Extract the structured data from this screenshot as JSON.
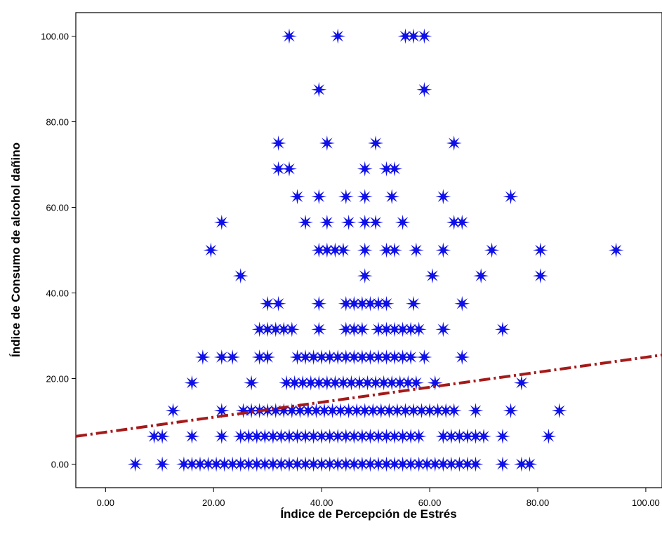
{
  "chart_data": {
    "type": "scatter",
    "xlabel": "Índice de Percepción de Estrés",
    "ylabel": "Índice de Consumo de alcohol dañino",
    "xlim": [
      -5.5,
      103
    ],
    "ylim": [
      -5.5,
      105.5
    ],
    "x_ticks": [
      0,
      20,
      40,
      60,
      80,
      100
    ],
    "y_ticks": [
      0,
      20,
      40,
      60,
      80,
      100
    ],
    "x_tick_labels": [
      "0.00",
      "20.00",
      "40.00",
      "60.00",
      "80.00",
      "100.00"
    ],
    "y_tick_labels": [
      "0.00",
      "20.00",
      "40.00",
      "60.00",
      "80.00",
      "100.00"
    ],
    "grid": false,
    "marker": "star",
    "marker_color": "#0f0fe8",
    "fit_line": {
      "style": "dash-dot",
      "color": "#a51a1a",
      "x": [
        -5.5,
        103
      ],
      "y": [
        6.5,
        25.5
      ]
    },
    "points": [
      [
        34,
        100
      ],
      [
        43,
        100
      ],
      [
        55.5,
        100
      ],
      [
        57,
        100
      ],
      [
        59,
        100
      ],
      [
        39.5,
        87.5
      ],
      [
        59,
        87.5
      ],
      [
        32,
        75
      ],
      [
        41,
        75
      ],
      [
        50,
        75
      ],
      [
        64.5,
        75
      ],
      [
        32,
        69
      ],
      [
        34,
        69
      ],
      [
        48,
        69
      ],
      [
        52,
        69
      ],
      [
        53.5,
        69
      ],
      [
        35.5,
        62.5
      ],
      [
        39.5,
        62.5
      ],
      [
        44.5,
        62.5
      ],
      [
        48,
        62.5
      ],
      [
        53,
        62.5
      ],
      [
        62.5,
        62.5
      ],
      [
        75,
        62.5
      ],
      [
        21.5,
        56.5
      ],
      [
        37,
        56.5
      ],
      [
        41,
        56.5
      ],
      [
        45,
        56.5
      ],
      [
        48,
        56.5
      ],
      [
        50,
        56.5
      ],
      [
        55,
        56.5
      ],
      [
        64.5,
        56.5
      ],
      [
        66,
        56.5
      ],
      [
        19.5,
        50
      ],
      [
        39.5,
        50
      ],
      [
        41,
        50
      ],
      [
        42.5,
        50
      ],
      [
        44,
        50
      ],
      [
        48,
        50
      ],
      [
        52,
        50
      ],
      [
        53.5,
        50
      ],
      [
        57.5,
        50
      ],
      [
        62.5,
        50
      ],
      [
        71.5,
        50
      ],
      [
        80.5,
        50
      ],
      [
        94.5,
        50
      ],
      [
        25,
        44
      ],
      [
        48,
        44
      ],
      [
        60.5,
        44
      ],
      [
        69.5,
        44
      ],
      [
        80.5,
        44
      ],
      [
        30,
        37.5
      ],
      [
        32,
        37.5
      ],
      [
        39.5,
        37.5
      ],
      [
        44.5,
        37.5
      ],
      [
        46,
        37.5
      ],
      [
        47.5,
        37.5
      ],
      [
        49,
        37.5
      ],
      [
        50.5,
        37.5
      ],
      [
        52,
        37.5
      ],
      [
        57,
        37.5
      ],
      [
        66,
        37.5
      ],
      [
        28.5,
        31.5
      ],
      [
        30,
        31.5
      ],
      [
        31.5,
        31.5
      ],
      [
        33,
        31.5
      ],
      [
        34.5,
        31.5
      ],
      [
        39.5,
        31.5
      ],
      [
        44.5,
        31.5
      ],
      [
        46,
        31.5
      ],
      [
        47.5,
        31.5
      ],
      [
        50.5,
        31.5
      ],
      [
        52,
        31.5
      ],
      [
        53.5,
        31.5
      ],
      [
        55,
        31.5
      ],
      [
        56.5,
        31.5
      ],
      [
        58,
        31.5
      ],
      [
        62.5,
        31.5
      ],
      [
        73.5,
        31.5
      ],
      [
        18,
        25
      ],
      [
        21.5,
        25
      ],
      [
        23.5,
        25
      ],
      [
        28.5,
        25
      ],
      [
        30,
        25
      ],
      [
        35.5,
        25
      ],
      [
        37,
        25
      ],
      [
        38.5,
        25
      ],
      [
        40,
        25
      ],
      [
        41.5,
        25
      ],
      [
        43,
        25
      ],
      [
        44.5,
        25
      ],
      [
        46,
        25
      ],
      [
        47.5,
        25
      ],
      [
        49,
        25
      ],
      [
        50.5,
        25
      ],
      [
        52,
        25
      ],
      [
        53.5,
        25
      ],
      [
        55,
        25
      ],
      [
        56.5,
        25
      ],
      [
        59,
        25
      ],
      [
        66,
        25
      ],
      [
        16,
        19
      ],
      [
        27,
        19
      ],
      [
        33.5,
        19
      ],
      [
        35,
        19
      ],
      [
        36.5,
        19
      ],
      [
        38,
        19
      ],
      [
        39.5,
        19
      ],
      [
        41,
        19
      ],
      [
        42.5,
        19
      ],
      [
        44,
        19
      ],
      [
        45.5,
        19
      ],
      [
        47,
        19
      ],
      [
        48.5,
        19
      ],
      [
        50,
        19
      ],
      [
        51.5,
        19
      ],
      [
        53,
        19
      ],
      [
        54.5,
        19
      ],
      [
        56,
        19
      ],
      [
        57.5,
        19
      ],
      [
        61,
        19
      ],
      [
        77,
        19
      ],
      [
        12.5,
        12.5
      ],
      [
        21.5,
        12.5
      ],
      [
        25.5,
        12.5
      ],
      [
        27,
        12.5
      ],
      [
        28.5,
        12.5
      ],
      [
        30,
        12.5
      ],
      [
        31.5,
        12.5
      ],
      [
        33,
        12.5
      ],
      [
        34.5,
        12.5
      ],
      [
        36,
        12.5
      ],
      [
        37.5,
        12.5
      ],
      [
        39,
        12.5
      ],
      [
        40.5,
        12.5
      ],
      [
        42,
        12.5
      ],
      [
        43.5,
        12.5
      ],
      [
        45,
        12.5
      ],
      [
        46.5,
        12.5
      ],
      [
        48,
        12.5
      ],
      [
        49.5,
        12.5
      ],
      [
        51,
        12.5
      ],
      [
        52.5,
        12.5
      ],
      [
        54,
        12.5
      ],
      [
        55.5,
        12.5
      ],
      [
        57,
        12.5
      ],
      [
        58.5,
        12.5
      ],
      [
        60,
        12.5
      ],
      [
        61.5,
        12.5
      ],
      [
        63,
        12.5
      ],
      [
        64.5,
        12.5
      ],
      [
        68.5,
        12.5
      ],
      [
        75,
        12.5
      ],
      [
        84,
        12.5
      ],
      [
        9,
        6.5
      ],
      [
        10.5,
        6.5
      ],
      [
        16,
        6.5
      ],
      [
        21.5,
        6.5
      ],
      [
        25,
        6.5
      ],
      [
        26.5,
        6.5
      ],
      [
        28,
        6.5
      ],
      [
        29.5,
        6.5
      ],
      [
        31,
        6.5
      ],
      [
        32.5,
        6.5
      ],
      [
        34,
        6.5
      ],
      [
        35.5,
        6.5
      ],
      [
        37,
        6.5
      ],
      [
        38.5,
        6.5
      ],
      [
        40,
        6.5
      ],
      [
        41.5,
        6.5
      ],
      [
        43,
        6.5
      ],
      [
        44.5,
        6.5
      ],
      [
        46,
        6.5
      ],
      [
        47.5,
        6.5
      ],
      [
        49,
        6.5
      ],
      [
        50.5,
        6.5
      ],
      [
        52,
        6.5
      ],
      [
        53.5,
        6.5
      ],
      [
        55,
        6.5
      ],
      [
        56.5,
        6.5
      ],
      [
        58,
        6.5
      ],
      [
        62.5,
        6.5
      ],
      [
        64,
        6.5
      ],
      [
        65.5,
        6.5
      ],
      [
        67,
        6.5
      ],
      [
        68.5,
        6.5
      ],
      [
        70,
        6.5
      ],
      [
        73.5,
        6.5
      ],
      [
        82,
        6.5
      ],
      [
        5.5,
        0
      ],
      [
        10.5,
        0
      ],
      [
        14.5,
        0
      ],
      [
        16,
        0
      ],
      [
        17.5,
        0
      ],
      [
        19,
        0
      ],
      [
        20.5,
        0
      ],
      [
        22,
        0
      ],
      [
        23.5,
        0
      ],
      [
        25,
        0
      ],
      [
        26.5,
        0
      ],
      [
        28,
        0
      ],
      [
        29.5,
        0
      ],
      [
        31,
        0
      ],
      [
        32.5,
        0
      ],
      [
        34,
        0
      ],
      [
        35.5,
        0
      ],
      [
        37,
        0
      ],
      [
        38.5,
        0
      ],
      [
        40,
        0
      ],
      [
        41.5,
        0
      ],
      [
        43,
        0
      ],
      [
        44.5,
        0
      ],
      [
        46,
        0
      ],
      [
        47.5,
        0
      ],
      [
        49,
        0
      ],
      [
        50.5,
        0
      ],
      [
        52,
        0
      ],
      [
        53.5,
        0
      ],
      [
        55,
        0
      ],
      [
        56.5,
        0
      ],
      [
        58,
        0
      ],
      [
        59.5,
        0
      ],
      [
        61,
        0
      ],
      [
        62.5,
        0
      ],
      [
        64,
        0
      ],
      [
        65.5,
        0
      ],
      [
        67,
        0
      ],
      [
        68.5,
        0
      ],
      [
        73.5,
        0
      ],
      [
        77,
        0
      ],
      [
        78.5,
        0
      ]
    ]
  }
}
